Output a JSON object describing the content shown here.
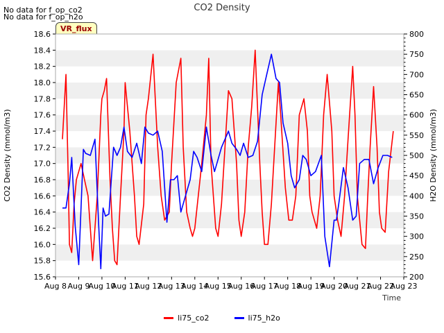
{
  "notes": [
    "No data for f_op_co2",
    "No data for f_op_h2o"
  ],
  "badge": "VR_flux",
  "chart_data": {
    "type": "line",
    "title": "CO2 Density",
    "xlabel": "Time",
    "ylabel": "CO2 Density (mmol/m3)",
    "y2label": "H2O Density (mmol/m3)",
    "x_ticks": [
      "Aug 8",
      "Aug 9",
      "Aug 10",
      "Aug 11",
      "Aug 12",
      "Aug 13",
      "Aug 14",
      "Aug 15",
      "Aug 16",
      "Aug 17",
      "Aug 18",
      "Aug 19",
      "Aug 20",
      "Aug 21",
      "Aug 22",
      "Aug 23"
    ],
    "xlim": [
      0,
      15
    ],
    "ylim": [
      15.6,
      18.6
    ],
    "y_ticks": [
      15.6,
      15.8,
      16.0,
      16.2,
      16.4,
      16.6,
      16.8,
      17.0,
      17.2,
      17.4,
      17.6,
      17.8,
      18.0,
      18.2,
      18.4,
      18.6
    ],
    "y2lim": [
      200,
      800
    ],
    "y2_ticks": [
      200,
      250,
      300,
      350,
      400,
      450,
      500,
      550,
      600,
      650,
      700,
      750,
      800
    ],
    "grid": "horizontal bands",
    "legend_position": "bottom-center",
    "series": [
      {
        "name": "li75_co2",
        "color": "#ff0000",
        "axis": "left",
        "x": [
          0.3,
          0.45,
          0.55,
          0.6,
          0.7,
          0.8,
          0.9,
          1.0,
          1.1,
          1.25,
          1.4,
          1.6,
          1.8,
          1.95,
          2.0,
          2.1,
          2.2,
          2.35,
          2.45,
          2.55,
          2.65,
          2.8,
          2.95,
          3.0,
          3.2,
          3.4,
          3.5,
          3.6,
          3.8,
          3.9,
          4.0,
          4.2,
          4.4,
          4.55,
          4.7,
          4.9,
          5.0,
          5.2,
          5.4,
          5.5,
          5.65,
          5.8,
          5.9,
          6.0,
          6.15,
          6.3,
          6.5,
          6.6,
          6.7,
          6.9,
          7.0,
          7.15,
          7.3,
          7.45,
          7.6,
          7.8,
          7.9,
          8.0,
          8.15,
          8.3,
          8.45,
          8.6,
          8.8,
          8.9,
          9.0,
          9.15,
          9.3,
          9.5,
          9.6,
          9.7,
          9.9,
          10.05,
          10.2,
          10.35,
          10.5,
          10.7,
          10.85,
          10.95,
          11.05,
          11.25,
          11.4,
          11.55,
          11.7,
          11.9,
          12.0,
          12.15,
          12.3,
          12.45,
          12.6,
          12.8,
          12.9,
          13.0,
          13.2,
          13.35,
          13.45,
          13.55,
          13.7,
          13.85,
          13.95,
          14.05,
          14.2,
          14.35,
          14.55
        ],
        "values": [
          17.3,
          18.1,
          16.8,
          16.0,
          15.9,
          16.5,
          16.8,
          16.9,
          17.0,
          16.8,
          16.6,
          15.8,
          16.6,
          17.6,
          17.8,
          17.9,
          18.05,
          16.8,
          16.2,
          15.8,
          15.75,
          16.6,
          17.4,
          18.0,
          17.4,
          16.6,
          16.1,
          16.0,
          16.5,
          17.6,
          17.8,
          18.35,
          17.2,
          16.6,
          16.3,
          16.4,
          17.0,
          18.0,
          18.3,
          17.2,
          16.4,
          16.2,
          16.1,
          16.2,
          16.6,
          17.0,
          17.6,
          18.3,
          17.0,
          16.2,
          16.1,
          16.5,
          17.2,
          17.9,
          17.8,
          17.0,
          16.3,
          16.1,
          16.4,
          17.2,
          17.7,
          18.4,
          17.0,
          16.4,
          16.0,
          16.0,
          16.5,
          17.5,
          18.0,
          17.6,
          16.7,
          16.3,
          16.3,
          16.6,
          17.6,
          17.8,
          17.4,
          16.6,
          16.4,
          16.2,
          16.6,
          17.6,
          18.1,
          17.4,
          16.6,
          16.3,
          16.1,
          16.6,
          17.3,
          18.2,
          17.6,
          16.6,
          16.0,
          15.95,
          16.6,
          17.2,
          17.95,
          17.2,
          16.4,
          16.2,
          16.15,
          16.9,
          17.4
        ]
      },
      {
        "name": "li75_h2o",
        "color": "#0000ff",
        "axis": "right",
        "x": [
          0.3,
          0.45,
          0.6,
          0.7,
          0.85,
          1.0,
          1.1,
          1.2,
          1.3,
          1.5,
          1.7,
          1.85,
          1.95,
          2.05,
          2.15,
          2.3,
          2.5,
          2.65,
          2.8,
          2.95,
          3.1,
          3.3,
          3.5,
          3.7,
          3.85,
          4.0,
          4.2,
          4.4,
          4.6,
          4.8,
          4.95,
          5.1,
          5.25,
          5.4,
          5.6,
          5.8,
          5.95,
          6.1,
          6.3,
          6.5,
          6.7,
          6.85,
          7.0,
          7.15,
          7.3,
          7.45,
          7.6,
          7.8,
          7.95,
          8.1,
          8.3,
          8.5,
          8.7,
          8.9,
          9.1,
          9.3,
          9.5,
          9.65,
          9.8,
          10.0,
          10.15,
          10.3,
          10.5,
          10.65,
          10.8,
          11.0,
          11.2,
          11.45,
          11.6,
          11.8,
          12.0,
          12.1,
          12.2,
          12.4,
          12.6,
          12.8,
          12.95,
          13.1,
          13.3,
          13.5,
          13.7,
          13.9,
          14.1,
          14.3,
          14.5
        ],
        "values": [
          370,
          370,
          430,
          495,
          325,
          230,
          370,
          515,
          505,
          500,
          540,
          340,
          220,
          370,
          350,
          355,
          520,
          500,
          520,
          570,
          510,
          495,
          530,
          480,
          570,
          555,
          550,
          560,
          510,
          335,
          440,
          440,
          450,
          360,
          400,
          440,
          510,
          495,
          460,
          570,
          500,
          460,
          490,
          520,
          540,
          560,
          530,
          515,
          500,
          530,
          495,
          500,
          535,
          650,
          700,
          750,
          690,
          680,
          580,
          530,
          450,
          420,
          440,
          500,
          490,
          450,
          460,
          500,
          300,
          225,
          340,
          340,
          380,
          470,
          420,
          340,
          350,
          480,
          490,
          490,
          430,
          470,
          500,
          500,
          495
        ]
      }
    ]
  }
}
